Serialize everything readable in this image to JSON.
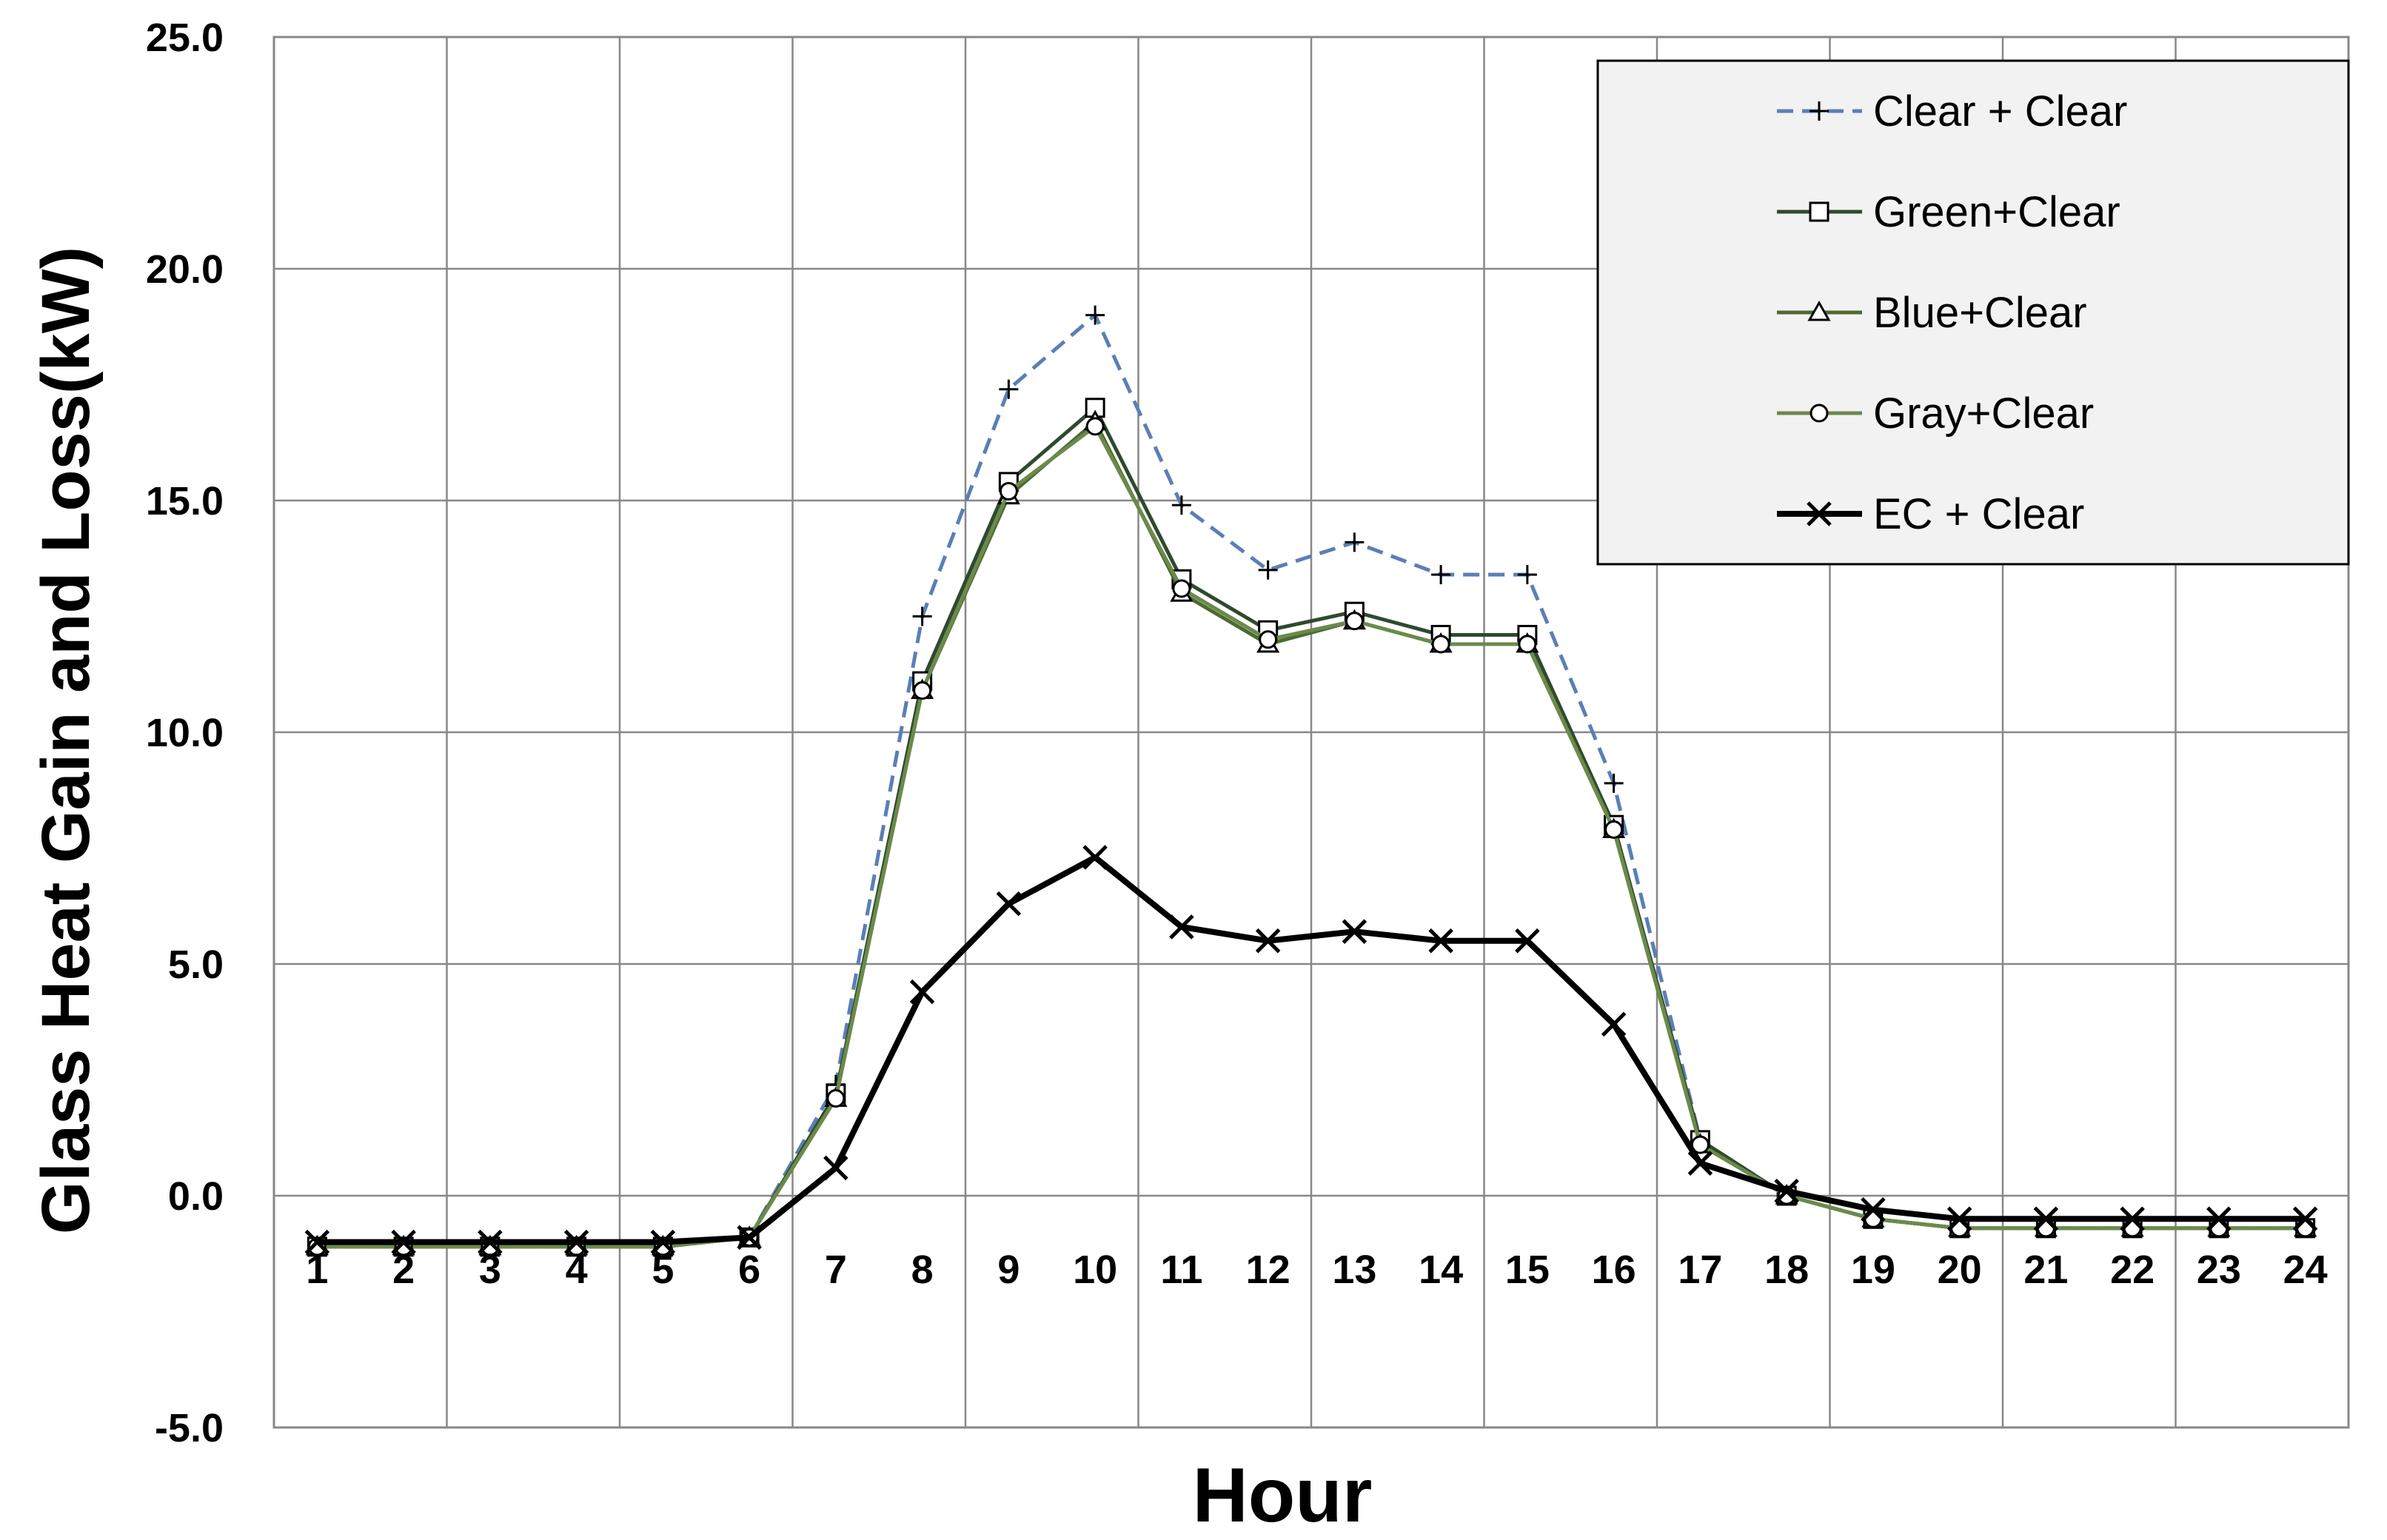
{
  "chart_data": {
    "type": "line",
    "title": "",
    "xlabel": "Hour",
    "ylabel": "Glass Heat Gain and Loss(kW)",
    "x": [
      "1",
      "2",
      "3",
      "4",
      "5",
      "6",
      "7",
      "8",
      "9",
      "10",
      "11",
      "12",
      "13",
      "14",
      "15",
      "16",
      "17",
      "18",
      "19",
      "20",
      "21",
      "22",
      "23",
      "24"
    ],
    "ylim": [
      -5.0,
      25.0
    ],
    "yticks": [
      "25.0",
      "20.0",
      "15.0",
      "10.0",
      "5.0",
      "0.0",
      "-5.0"
    ],
    "grid": true,
    "legend_position": "top-right",
    "series": [
      {
        "name": "Clear + Clear",
        "color": "#5b7fb5",
        "marker": "plus",
        "dash": "dashed",
        "values": [
          -1.1,
          -1.1,
          -1.1,
          -1.1,
          -1.1,
          -0.9,
          2.4,
          12.5,
          17.4,
          19.0,
          14.9,
          13.5,
          14.1,
          13.4,
          13.4,
          8.9,
          1.2,
          0.0,
          -0.5,
          -0.7,
          -0.7,
          -0.7,
          -0.7,
          -0.7
        ]
      },
      {
        "name": "Green+Clear",
        "color": "#2f4a2f",
        "marker": "square",
        "dash": "solid",
        "values": [
          -1.1,
          -1.1,
          -1.1,
          -1.1,
          -1.1,
          -0.9,
          2.2,
          11.1,
          15.4,
          17.0,
          13.3,
          12.2,
          12.6,
          12.1,
          12.1,
          8.0,
          1.2,
          0.0,
          -0.5,
          -0.7,
          -0.7,
          -0.7,
          -0.7,
          -0.7
        ]
      },
      {
        "name": "Blue+Clear",
        "color": "#4d6b2f",
        "marker": "triangle",
        "dash": "solid",
        "values": [
          -1.1,
          -1.1,
          -1.1,
          -1.1,
          -1.1,
          -0.9,
          2.1,
          10.9,
          15.1,
          16.7,
          13.0,
          11.9,
          12.4,
          11.9,
          11.9,
          7.9,
          1.1,
          0.0,
          -0.5,
          -0.7,
          -0.7,
          -0.7,
          -0.7,
          -0.7
        ]
      },
      {
        "name": "Gray+Clear",
        "color": "#6b8a4a",
        "marker": "circle",
        "dash": "solid",
        "values": [
          -1.1,
          -1.1,
          -1.1,
          -1.1,
          -1.1,
          -0.9,
          2.1,
          10.9,
          15.2,
          16.6,
          13.1,
          12.0,
          12.4,
          11.9,
          11.9,
          7.9,
          1.1,
          0.0,
          -0.5,
          -0.7,
          -0.7,
          -0.7,
          -0.7,
          -0.7
        ]
      },
      {
        "name": "EC + Clear",
        "color": "#000000",
        "marker": "x",
        "dash": "solid",
        "values": [
          -1.0,
          -1.0,
          -1.0,
          -1.0,
          -1.0,
          -0.9,
          0.6,
          4.4,
          6.3,
          7.3,
          5.8,
          5.5,
          5.7,
          5.5,
          5.5,
          3.7,
          0.7,
          0.1,
          -0.3,
          -0.5,
          -0.5,
          -0.5,
          -0.5,
          -0.5
        ]
      }
    ]
  }
}
